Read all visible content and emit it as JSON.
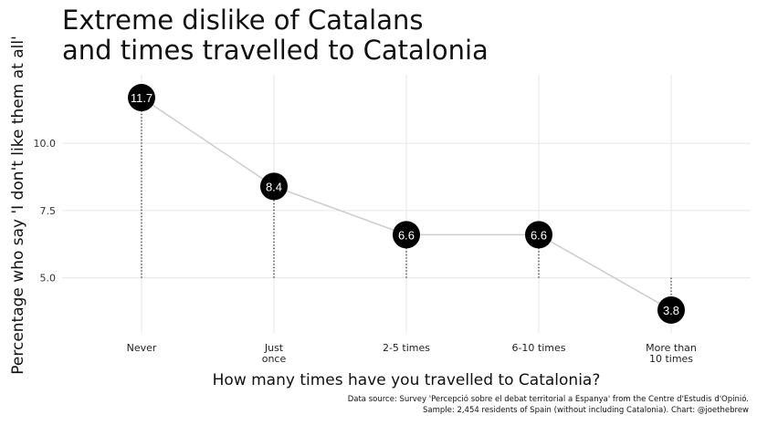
{
  "title_lines": [
    "Extreme dislike of Catalans",
    "and times travelled to Catalonia"
  ],
  "caption_lines": [
    "Data source: Survey 'Percepció sobre el debat territorial a Espanya' from the Centre d'Estudis d'Opinió.",
    "Sample: 2,454 residents of Spain (without including Catalonia). Chart: @joethebrew"
  ],
  "chart_data": {
    "type": "line",
    "title": "Extreme dislike of Catalans and times travelled to Catalonia",
    "xlabel": "How many times have you travelled to Catalonia?",
    "ylabel": "Percentage who say 'I don't like them at all'",
    "categories": [
      "Never",
      "Just\nonce",
      "2-5 times",
      "6-10 times",
      "More than\n10 times"
    ],
    "values": [
      11.7,
      8.4,
      6.6,
      6.6,
      3.8
    ],
    "data_labels": [
      "11.7",
      "8.4",
      "6.6",
      "6.6",
      "3.8"
    ],
    "yticks": [
      5.0,
      7.5,
      10.0
    ],
    "ytick_labels": [
      "5.0",
      "7.5",
      "10.0"
    ],
    "ylim": [
      2.95,
      12.55
    ],
    "grid": true,
    "line_color": "#cccccc",
    "point_color": "#000000",
    "label_color": "#ffffff",
    "grid_color": "#e6e6e6"
  }
}
